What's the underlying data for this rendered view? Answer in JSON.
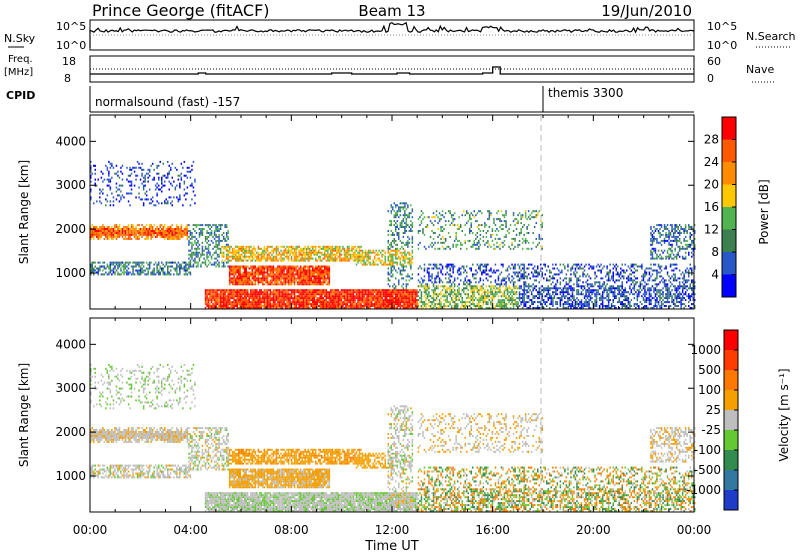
{
  "header": {
    "station": "Prince George (fitACF)",
    "beam": "Beam 13",
    "date": "19/Jun/2010"
  },
  "strip_labels": {
    "nsky": "N.Sky",
    "nsky_ticks": [
      "10^5",
      "10^0"
    ],
    "nsearch": "N.Search",
    "nsearch_ticks": [
      "10^5",
      "10^0"
    ],
    "freq_line1": "Freq.",
    "freq_line2": "[MHz]",
    "freq_ticks": [
      "18",
      "8"
    ],
    "nave": "Nave",
    "nave_ticks": [
      "60",
      "0"
    ],
    "cpid": "CPID"
  },
  "cpid_segments": [
    {
      "label": "normalsound (fast) -157",
      "start_h": 0
    },
    {
      "label": "themis 3300",
      "start_h": 18
    }
  ],
  "chart_data": [
    {
      "type": "heatmap",
      "name": "power",
      "ylabel": "Slant Range [km]",
      "xlabel": "",
      "xlim_hours": [
        0,
        24
      ],
      "ylim": [
        180,
        4600
      ],
      "yticks": [
        "1000",
        "2000",
        "3000",
        "4000"
      ],
      "xtick_labels": [
        "00:00",
        "04:00",
        "08:00",
        "12:00",
        "16:00",
        "20:00",
        "00:00"
      ],
      "colorbar": {
        "label": "Power [dB]",
        "tick_labels": [
          "4",
          "8",
          "12",
          "16",
          "20",
          "24",
          "28"
        ],
        "colors": [
          "#0000ff",
          "#2858c8",
          "#3c8050",
          "#50b450",
          "#ffc800",
          "#ff8c00",
          "#ff5a00",
          "#ff0000"
        ]
      }
    },
    {
      "type": "heatmap",
      "name": "velocity",
      "ylabel": "Slant Range [km]",
      "xlabel": "Time UT",
      "xlim_hours": [
        0,
        24
      ],
      "ylim": [
        180,
        4600
      ],
      "yticks": [
        "1000",
        "2000",
        "3000",
        "4000"
      ],
      "xtick_labels": [
        "00:00",
        "04:00",
        "08:00",
        "12:00",
        "16:00",
        "20:00",
        "00:00"
      ],
      "colorbar": {
        "label": "Velocity [m s⁻¹]",
        "tick_labels": [
          "1000",
          "500",
          "100",
          "25",
          "-25",
          "-100",
          "-500",
          "-1000"
        ],
        "colors": [
          "#1e3cc8",
          "#3278a0",
          "#328c50",
          "#64c832",
          "#bebebe",
          "#f5a000",
          "#ff7800",
          "#ff3c00",
          "#ff0000"
        ]
      }
    }
  ]
}
